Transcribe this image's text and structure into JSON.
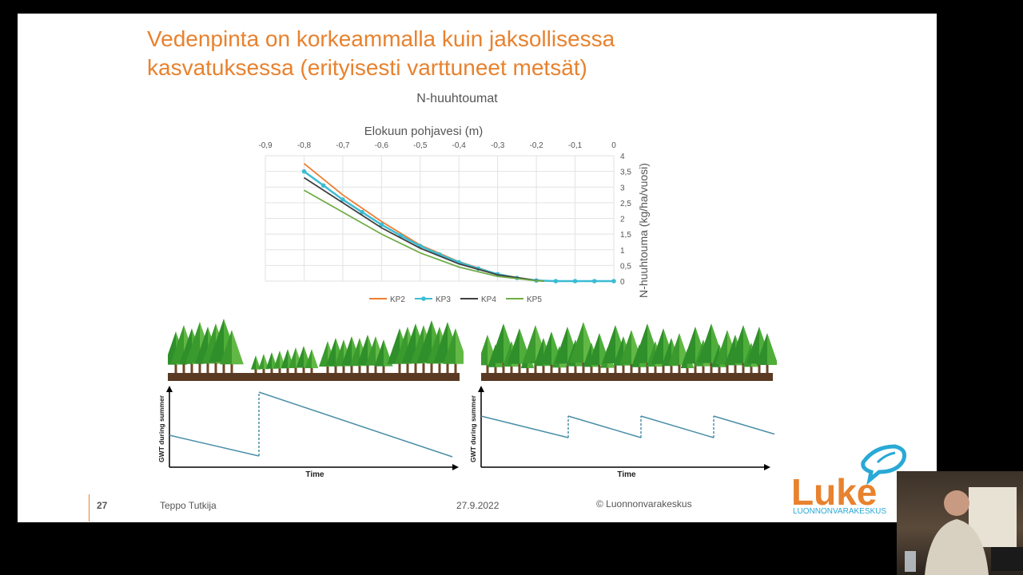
{
  "slide": {
    "title_line1": "Vedenpinta on korkeammalla kuin jaksollisessa",
    "title_line2": "kasvatuksessa (erityisesti varttuneet metsät)",
    "page_number": "27",
    "author": "Teppo Tutkija",
    "date": "27.9.2022",
    "copyright": "© Luonnonvarakeskus"
  },
  "logo": {
    "wordmark": "Luke",
    "subtitle": "LUONNONVARAKESKUS",
    "color_orange": "#e8822e",
    "color_blue": "#29a9d6"
  },
  "chart_data": [
    {
      "type": "line",
      "title": "N-huuhtoumat",
      "xlabel": "Elokuun pohjavesi (m)",
      "ylabel": "N-huuhtouma (kg/ha/vuosi)",
      "xlim": [
        -0.9,
        0
      ],
      "ylim": [
        0,
        4
      ],
      "x_ticks": [
        "-0,9",
        "-0,8",
        "-0,7",
        "-0,6",
        "-0,5",
        "-0,4",
        "-0,3",
        "-0,2",
        "-0,1",
        "0"
      ],
      "y_ticks": [
        "0",
        "0,5",
        "1",
        "1,5",
        "2",
        "2,5",
        "3",
        "3,5",
        "4"
      ],
      "grid": true,
      "legend_position": "bottom",
      "series": [
        {
          "name": "KP2",
          "color": "#ed7d31",
          "markers": false,
          "x": [
            -0.8,
            -0.7,
            -0.6,
            -0.5,
            -0.4,
            -0.3,
            -0.2,
            -0.18
          ],
          "y": [
            3.75,
            2.75,
            1.9,
            1.15,
            0.62,
            0.22,
            0.02,
            0
          ]
        },
        {
          "name": "KP3",
          "color": "#3bbcd4",
          "markers": true,
          "x": [
            -0.8,
            -0.75,
            -0.7,
            -0.65,
            -0.6,
            -0.55,
            -0.5,
            -0.45,
            -0.4,
            -0.35,
            -0.3,
            -0.25,
            -0.2,
            -0.15,
            -0.1,
            -0.05,
            0
          ],
          "y": [
            3.5,
            3.05,
            2.6,
            2.2,
            1.8,
            1.45,
            1.12,
            0.85,
            0.6,
            0.4,
            0.22,
            0.1,
            0.02,
            0,
            0,
            0,
            0
          ]
        },
        {
          "name": "KP4",
          "color": "#404040",
          "markers": false,
          "x": [
            -0.8,
            -0.7,
            -0.6,
            -0.5,
            -0.4,
            -0.3,
            -0.2,
            -0.18
          ],
          "y": [
            3.3,
            2.5,
            1.7,
            1.05,
            0.55,
            0.2,
            0.02,
            0
          ]
        },
        {
          "name": "KP5",
          "color": "#70ad47",
          "markers": false,
          "x": [
            -0.8,
            -0.7,
            -0.6,
            -0.5,
            -0.4,
            -0.3,
            -0.2,
            -0.18
          ],
          "y": [
            2.9,
            2.2,
            1.5,
            0.9,
            0.45,
            0.15,
            0.01,
            0
          ]
        }
      ]
    },
    {
      "type": "line",
      "title": "",
      "xlabel": "Time",
      "ylabel": "GWT during summer",
      "pattern": "sawtooth-single-clearcut",
      "series": [
        {
          "segments": 2,
          "color": "#4a8fa8"
        }
      ]
    },
    {
      "type": "line",
      "title": "",
      "xlabel": "Time",
      "ylabel": "GWT during summer",
      "pattern": "sawtooth-periodic-selection",
      "series": [
        {
          "segments": 4,
          "color": "#4a8fa8"
        }
      ]
    }
  ]
}
